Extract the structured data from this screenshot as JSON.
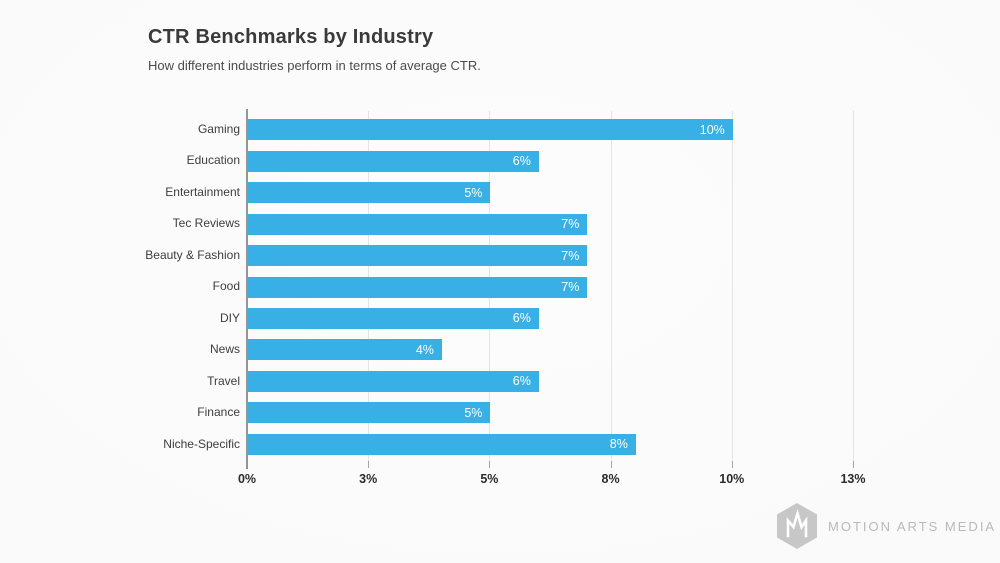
{
  "slide": {
    "background": "#fbfbfb"
  },
  "chart_data": {
    "type": "bar",
    "orientation": "horizontal",
    "title": "CTR Benchmarks by Industry",
    "subtitle": "How different industries perform in terms of average CTR.",
    "categories": [
      "Gaming",
      "Education",
      "Entertainment",
      "Tec Reviews",
      "Beauty & Fashion",
      "Food",
      "DIY",
      "News",
      "Travel",
      "Finance",
      "Niche-Specific"
    ],
    "values": [
      10,
      6,
      5,
      7,
      7,
      7,
      6,
      4,
      6,
      5,
      8
    ],
    "value_labels": [
      "10%",
      "6%",
      "5%",
      "7%",
      "7%",
      "7%",
      "6%",
      "4%",
      "6%",
      "5%",
      "8%"
    ],
    "xlabel": "",
    "ylabel": "",
    "xlim": [
      0,
      12.5
    ],
    "x_ticks": [
      {
        "value": 0,
        "label": "0%"
      },
      {
        "value": 2.5,
        "label": "3%"
      },
      {
        "value": 5,
        "label": "5%"
      },
      {
        "value": 7.5,
        "label": "8%"
      },
      {
        "value": 10,
        "label": "10%"
      },
      {
        "value": 12.5,
        "label": "13%"
      }
    ],
    "grid": "vertical-gridlines-only",
    "legend": "none",
    "bar_color": "#39B0E5",
    "bar_label_color": "#ffffff",
    "gridline_color": "#e4e4e4",
    "axis_line_color": "#959595",
    "tick_color": "#a6a6a6",
    "tick_label_color": "#2b2b2b",
    "category_label_color": "#3d3d3d",
    "title_color": "#3a3a3a",
    "subtitle_color": "#4b4b4b"
  },
  "brand": {
    "name": "MOTION ARTS MEDIA",
    "icon": "hexagon-m-monogram",
    "icon_color": "#c7c7c7",
    "glyph_color": "#ffffff",
    "text_color": "#b9b9b9"
  }
}
